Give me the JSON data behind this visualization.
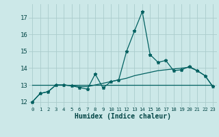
{
  "xlabel": "Humidex (Indice chaleur)",
  "background_color": "#cce8e8",
  "grid_color": "#aacccc",
  "line_color": "#006060",
  "xlim": [
    -0.5,
    23.5
  ],
  "ylim": [
    11.7,
    17.8
  ],
  "yticks": [
    12,
    13,
    14,
    15,
    16,
    17
  ],
  "xticks": [
    0,
    1,
    2,
    3,
    4,
    5,
    6,
    7,
    8,
    9,
    10,
    11,
    12,
    13,
    14,
    15,
    16,
    17,
    18,
    19,
    20,
    21,
    22,
    23
  ],
  "line1_x": [
    0,
    1,
    2,
    3,
    4,
    5,
    6,
    7,
    8,
    9,
    10,
    11,
    12,
    13,
    14,
    15,
    16,
    17,
    18,
    19,
    20,
    21,
    22,
    23
  ],
  "line1_y": [
    12.0,
    12.5,
    12.6,
    13.0,
    13.0,
    12.95,
    12.85,
    12.75,
    13.65,
    12.82,
    13.2,
    13.3,
    15.0,
    16.2,
    17.35,
    14.8,
    14.35,
    14.45,
    13.85,
    13.9,
    14.1,
    13.85,
    13.55,
    12.9
  ],
  "line2_x": [
    0,
    1,
    2,
    3,
    4,
    5,
    6,
    7,
    8,
    9,
    10,
    11,
    12,
    13,
    14,
    15,
    16,
    17,
    18,
    19,
    20,
    21,
    22,
    23
  ],
  "line2_y": [
    12.0,
    12.5,
    12.6,
    13.0,
    13.0,
    12.95,
    12.9,
    12.9,
    13.0,
    13.1,
    13.2,
    13.3,
    13.4,
    13.55,
    13.65,
    13.75,
    13.85,
    13.9,
    13.95,
    14.0,
    14.05,
    13.85,
    13.55,
    12.9
  ],
  "line3_x": [
    0,
    23
  ],
  "line3_y": [
    13.0,
    13.0
  ]
}
